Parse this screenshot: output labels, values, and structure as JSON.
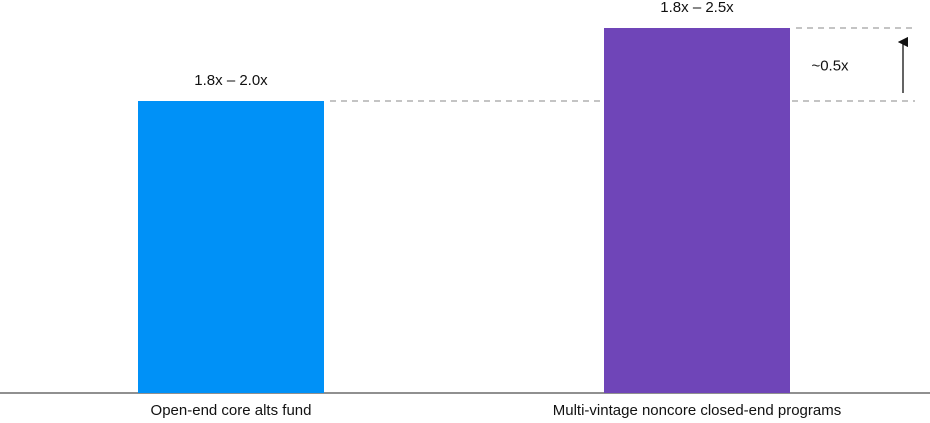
{
  "chart_data": {
    "type": "bar",
    "categories": [
      "Open-end core alts fund",
      "Multi-vintage noncore closed-end programs"
    ],
    "values": [
      2.0,
      2.5
    ],
    "value_labels": [
      "1.8x – 2.0x",
      "1.8x – 2.5x"
    ],
    "colors": [
      "#0091f7",
      "#6f45b8"
    ],
    "annotation": "~0.5x"
  }
}
